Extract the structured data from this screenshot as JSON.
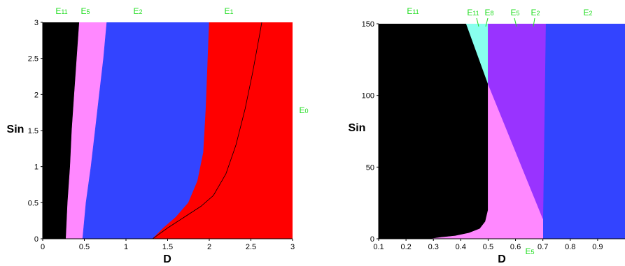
{
  "colors": {
    "E11": "#000000",
    "E5": "#ff88ff",
    "E2": "#3344ff",
    "E1": "#ff0000",
    "E8": "#88ffee",
    "E5_right": "#9933ff",
    "label_green": "#22dd22"
  },
  "chart_data": [
    {
      "type": "area",
      "title": "",
      "xlabel": "D",
      "ylabel": "Sin",
      "xlim": [
        0,
        3
      ],
      "ylim": [
        0,
        3
      ],
      "x_ticks": [
        "0",
        "0.5",
        "1",
        "1.5",
        "2",
        "2.5",
        "3"
      ],
      "y_ticks": [
        "0",
        "0.5",
        "1",
        "1.5",
        "2",
        "2.5",
        "3"
      ],
      "grid": false,
      "regions": [
        {
          "name": "E11",
          "main": "E",
          "sub": "11",
          "color": "#000000",
          "polygon": [
            [
              0,
              0
            ],
            [
              0.28,
              0
            ],
            [
              0.3,
              0.5
            ],
            [
              0.33,
              1
            ],
            [
              0.35,
              1.5
            ],
            [
              0.38,
              2
            ],
            [
              0.41,
              2.5
            ],
            [
              0.44,
              3
            ],
            [
              0,
              3
            ]
          ]
        },
        {
          "name": "E5",
          "main": "E",
          "sub": "5",
          "color": "#ff88ff",
          "polygon": [
            [
              0.28,
              0
            ],
            [
              0.48,
              0
            ],
            [
              0.52,
              0.5
            ],
            [
              0.58,
              1
            ],
            [
              0.63,
              1.5
            ],
            [
              0.68,
              2
            ],
            [
              0.73,
              2.5
            ],
            [
              0.77,
              3
            ],
            [
              0.44,
              3
            ],
            [
              0.41,
              2.5
            ],
            [
              0.38,
              2
            ],
            [
              0.35,
              1.5
            ],
            [
              0.33,
              1
            ],
            [
              0.3,
              0.5
            ]
          ]
        },
        {
          "name": "E2",
          "main": "E",
          "sub": "2",
          "color": "#3344ff",
          "polygon": [
            [
              0.48,
              0
            ],
            [
              1.32,
              0
            ],
            [
              1.45,
              0.15
            ],
            [
              1.6,
              0.3
            ],
            [
              1.75,
              0.5
            ],
            [
              1.86,
              0.8
            ],
            [
              1.93,
              1.2
            ],
            [
              1.96,
              1.8
            ],
            [
              1.98,
              2.4
            ],
            [
              2.0,
              3
            ],
            [
              0.77,
              3
            ],
            [
              0.73,
              2.5
            ],
            [
              0.68,
              2
            ],
            [
              0.63,
              1.5
            ],
            [
              0.58,
              1
            ],
            [
              0.52,
              0.5
            ]
          ]
        },
        {
          "name": "E1",
          "main": "E",
          "sub": "1",
          "color": "#ff0000",
          "polygon": [
            [
              1.32,
              0
            ],
            [
              3,
              0
            ],
            [
              3,
              3
            ],
            [
              2.0,
              3
            ],
            [
              1.98,
              2.4
            ],
            [
              1.96,
              1.8
            ],
            [
              1.93,
              1.2
            ],
            [
              1.86,
              0.8
            ],
            [
              1.75,
              0.5
            ],
            [
              1.6,
              0.3
            ],
            [
              1.45,
              0.15
            ]
          ]
        }
      ],
      "boundary_line": [
        [
          1.32,
          0
        ],
        [
          1.5,
          0.15
        ],
        [
          1.7,
          0.3
        ],
        [
          1.9,
          0.45
        ],
        [
          2.05,
          0.6
        ],
        [
          2.2,
          0.9
        ],
        [
          2.32,
          1.3
        ],
        [
          2.43,
          1.8
        ],
        [
          2.52,
          2.3
        ],
        [
          2.6,
          2.8
        ],
        [
          2.63,
          3
        ]
      ],
      "labels": [
        {
          "main": "E",
          "sub": "11"
        },
        {
          "main": "E",
          "sub": "5"
        },
        {
          "main": "E",
          "sub": "2"
        },
        {
          "main": "E",
          "sub": "1"
        },
        {
          "main": "E",
          "sub": "0"
        }
      ]
    },
    {
      "type": "area",
      "title": "",
      "xlabel": "D",
      "ylabel": "Sin",
      "xlim": [
        0.1,
        1
      ],
      "ylim": [
        0,
        150
      ],
      "x_ticks": [
        "0.1",
        "0.2",
        "0.3",
        "0.4",
        "0.5",
        "0.6",
        "0.7",
        "0.8",
        "0.9"
      ],
      "y_ticks": [
        "0",
        "50",
        "100",
        "150"
      ],
      "grid": false,
      "regions": [
        {
          "name": "E2",
          "main": "E",
          "sub": "2",
          "color": "#3344ff",
          "polygon": [
            [
              0.1,
              0
            ],
            [
              1,
              0
            ],
            [
              1,
              150
            ],
            [
              0.1,
              150
            ]
          ]
        },
        {
          "name": "E11",
          "main": "E",
          "sub": "11",
          "color": "#000000",
          "polygon": [
            [
              0.1,
              0
            ],
            [
              0.29,
              0
            ],
            [
              0.33,
              1
            ],
            [
              0.38,
              2
            ],
            [
              0.43,
              4
            ],
            [
              0.47,
              7
            ],
            [
              0.49,
              12
            ],
            [
              0.5,
              20
            ],
            [
              0.5,
              108
            ],
            [
              0.42,
              150
            ],
            [
              0.1,
              150
            ]
          ]
        },
        {
          "name": "E5",
          "main": "E",
          "sub": "5",
          "color": "#ff88ff",
          "polygon": [
            [
              0.29,
              0
            ],
            [
              0.7,
              0
            ],
            [
              0.7,
              14
            ],
            [
              0.5,
              108
            ],
            [
              0.5,
              20
            ],
            [
              0.49,
              12
            ],
            [
              0.47,
              7
            ],
            [
              0.43,
              4
            ],
            [
              0.38,
              2
            ],
            [
              0.33,
              1
            ]
          ]
        },
        {
          "name": "E11E8",
          "main": "E",
          "sub": "11",
          "color": "#88ffee",
          "polygon": [
            [
              0.42,
              150
            ],
            [
              0.5,
              150
            ],
            [
              0.5,
              108
            ]
          ]
        },
        {
          "name": "E5E2",
          "main": "E",
          "sub": "5",
          "color": "#9933ff",
          "polygon": [
            [
              0.5,
              108
            ],
            [
              0.5,
              150
            ],
            [
              0.71,
              150
            ],
            [
              0.7,
              14
            ]
          ]
        }
      ],
      "labels": [
        {
          "main": "E",
          "sub": "11"
        },
        {
          "main": "E",
          "sub": "11"
        },
        {
          "main": "E",
          "sub": "8"
        },
        {
          "main": "E",
          "sub": "5"
        },
        {
          "main": "E",
          "sub": "2"
        },
        {
          "main": "E",
          "sub": "2"
        },
        {
          "main": "E",
          "sub": "5"
        }
      ]
    }
  ]
}
